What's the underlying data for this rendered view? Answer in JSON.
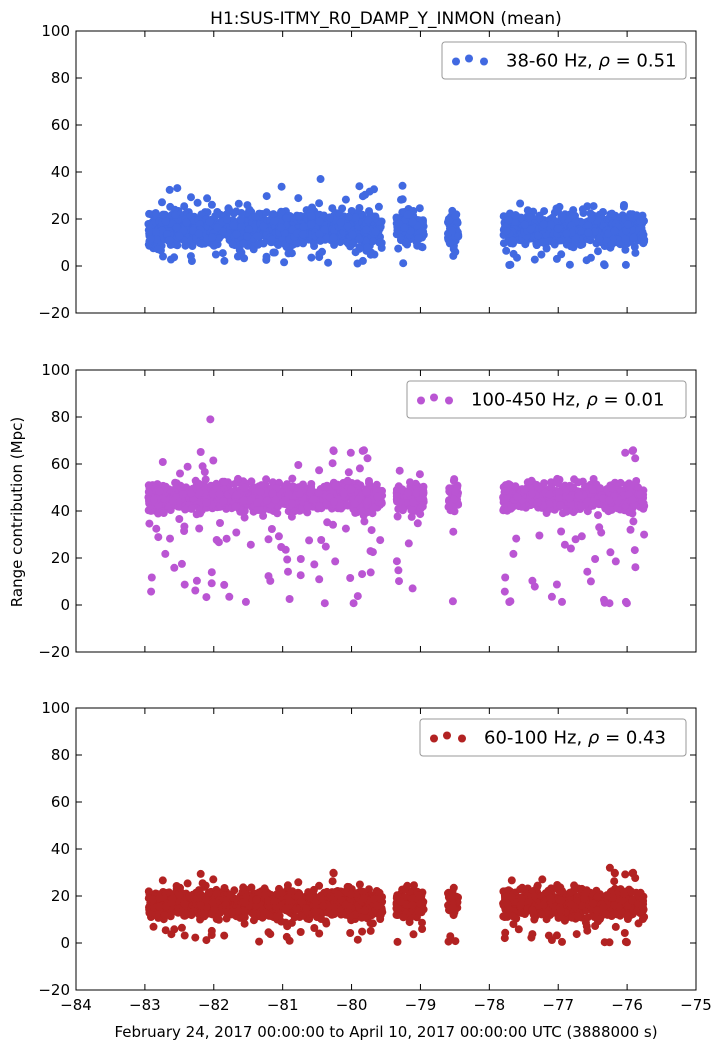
{
  "title": "H1:SUS-ITMY_R0_DAMP_Y_INMON (mean)",
  "ylabel": "Range contribution (Mpc)",
  "xlabel": "February 24, 2017 00:00:00 to April 10, 2017 00:00:00 UTC (3888000 s)",
  "chart_data": [
    {
      "type": "scatter",
      "color": "#4169e1",
      "ylim": [
        -20,
        100
      ],
      "yticks": [
        "100",
        "80",
        "60",
        "40",
        "20",
        "0",
        "−20"
      ],
      "legend": {
        "series": "38-60 Hz,",
        "rho_symbol": "ρ",
        "rho_value": "= 0.51",
        "placement": "top-right"
      },
      "series": [
        {
          "name": "38-60 Hz, ρ = 0.51",
          "center": 16,
          "spread": 5,
          "outlier_min": 0,
          "outlier_max": 35,
          "max_point": [
            -80.45,
            37
          ]
        }
      ]
    },
    {
      "type": "scatter",
      "color": "#ba55d3",
      "ylim": [
        -20,
        100
      ],
      "yticks": [
        "100",
        "80",
        "60",
        "40",
        "20",
        "0",
        "−20"
      ],
      "legend": {
        "series": "100-450 Hz,",
        "rho_symbol": "ρ",
        "rho_value": "= 0.01",
        "placement": "top-right"
      },
      "series": [
        {
          "name": "100-450 Hz, ρ = 0.01",
          "center": 46,
          "spread": 4,
          "outlier_min": 0,
          "outlier_max": 66,
          "max_point": [
            -82.05,
            79
          ]
        }
      ]
    },
    {
      "type": "scatter",
      "color": "#b22222",
      "ylim": [
        -20,
        100
      ],
      "yticks": [
        "100",
        "80",
        "60",
        "40",
        "20",
        "0",
        "−20"
      ],
      "legend": {
        "series": "60-100 Hz,",
        "rho_symbol": "ρ",
        "rho_value": "= 0.43",
        "placement": "top-right"
      },
      "series": [
        {
          "name": "60-100 Hz, ρ = 0.43",
          "center": 17,
          "spread": 4,
          "outlier_min": 0,
          "outlier_max": 30,
          "max_point": [
            -76.25,
            32
          ]
        }
      ]
    }
  ],
  "x_axis": {
    "xlim": [
      -84,
      -75
    ],
    "ticks": [
      "−84",
      "−83",
      "−82",
      "−81",
      "−80",
      "−79",
      "−78",
      "−77",
      "−76",
      "−75"
    ],
    "data_segments": [
      [
        -82.95,
        -79.55
      ],
      [
        -79.35,
        -78.95
      ],
      [
        -78.6,
        -78.45
      ],
      [
        -77.8,
        -75.75
      ]
    ]
  }
}
